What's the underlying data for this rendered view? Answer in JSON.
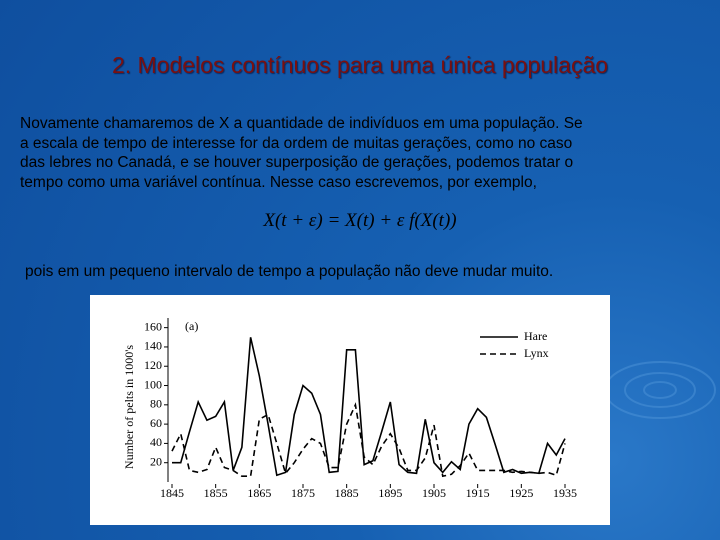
{
  "slide": {
    "title": "2. Modelos contínuos para uma única população",
    "paragraph": [
      "Novamente chamaremos de X a quantidade de indivíduos em uma população. Se",
      "a escala de tempo de interesse for  da ordem de muitas gerações, como no caso",
      "das lebres no Canadá,  e se houver superposição de gerações, podemos tratar o",
      "tempo como uma variável contínua. Nesse caso escrevemos, por exemplo,"
    ],
    "formula": "X(t + ε) = X(t) + ε f(X(t))",
    "conclusion": "pois em um pequeno intervalo de tempo a população não deve mudar muito."
  },
  "chart_data": {
    "type": "line",
    "panel_label": "(a)",
    "y_label": "Number of pelts in 1000's",
    "x": [
      1845,
      1847,
      1849,
      1851,
      1853,
      1855,
      1857,
      1859,
      1861,
      1863,
      1865,
      1867,
      1869,
      1871,
      1873,
      1875,
      1877,
      1879,
      1881,
      1883,
      1885,
      1887,
      1889,
      1891,
      1893,
      1895,
      1897,
      1899,
      1901,
      1903,
      1905,
      1907,
      1909,
      1911,
      1913,
      1915,
      1917,
      1919,
      1921,
      1923,
      1925,
      1927,
      1929,
      1931,
      1933,
      1935
    ],
    "series": [
      {
        "name": "Hare",
        "color": "#000000",
        "style": "solid",
        "values": [
          20,
          20,
          52,
          83,
          64,
          68,
          83,
          12,
          36,
          150,
          110,
          60,
          7,
          10,
          70,
          100,
          92,
          70,
          10,
          11,
          137,
          137,
          18,
          22,
          52,
          83,
          18,
          10,
          9,
          65,
          20,
          10,
          21,
          13,
          60,
          76,
          67,
          39,
          10,
          13,
          9,
          10,
          9,
          40,
          28,
          45
        ]
      },
      {
        "name": "Lynx",
        "color": "#000000",
        "style": "dashed",
        "values": [
          32,
          50,
          12,
          10,
          13,
          36,
          15,
          12,
          6,
          6,
          65,
          70,
          40,
          9,
          20,
          34,
          45,
          40,
          15,
          15,
          60,
          80,
          26,
          18,
          37,
          50,
          35,
          12,
          12,
          25,
          59,
          6,
          8,
          17,
          30,
          12,
          12,
          12,
          12,
          10,
          11,
          10,
          9,
          10,
          7,
          40
        ]
      }
    ],
    "xlim": [
      1845,
      1935
    ],
    "xticks": [
      1845,
      1855,
      1865,
      1875,
      1885,
      1895,
      1905,
      1915,
      1925,
      1935
    ],
    "ylim": [
      0,
      170
    ],
    "yticks": [
      20,
      40,
      60,
      80,
      100,
      120,
      140,
      160
    ],
    "legend": "upper right"
  }
}
